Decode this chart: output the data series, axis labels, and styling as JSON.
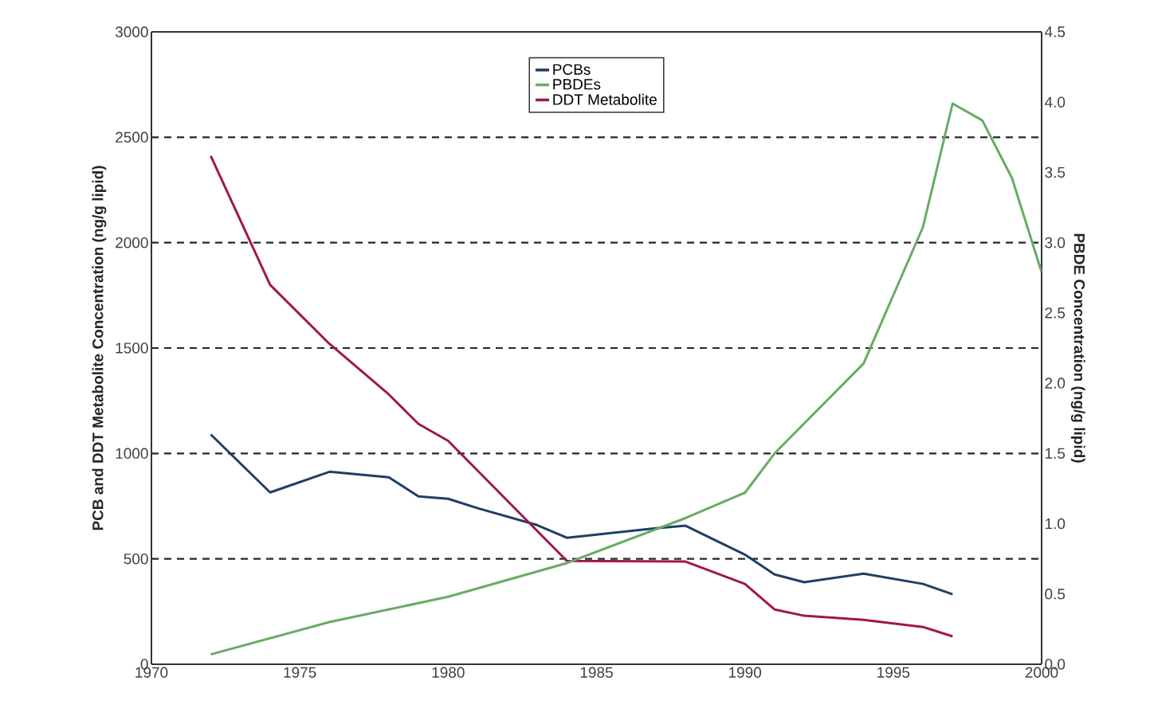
{
  "chart_data": {
    "type": "line",
    "xlabel": null,
    "ylabel": "PCB and DDT Metabolite Concentration (ng/g lipid)",
    "y2label": "PBDE Concentration (ng/g lipid)",
    "series": [
      {
        "name": "PCBs",
        "color": "#1f3f66",
        "x": [
          1972,
          1974,
          1976,
          1978,
          1979,
          1980,
          1981,
          1983,
          1984,
          1985,
          1986,
          1987,
          1988,
          1990,
          1991,
          1992,
          1994,
          1996,
          1997
        ],
        "values": [
          1090,
          815,
          913,
          887,
          796,
          785,
          740,
          660,
          600,
          615,
          630,
          645,
          657,
          520,
          426,
          389,
          430,
          381,
          332
        ]
      },
      {
        "name": "PBDEs",
        "color": "#6aaa64",
        "axis": "y2",
        "x": [
          1972,
          1976,
          1980,
          1984,
          1988,
          1990,
          1991,
          1994,
          1996,
          1997,
          1998,
          1999,
          2000
        ],
        "values": [
          0.07,
          0.3,
          0.48,
          0.72,
          1.04,
          1.22,
          1.5,
          2.14,
          3.11,
          3.99,
          3.87,
          3.46,
          2.79
        ]
      },
      {
        "name": "DDT Metabolite",
        "color": "#a0174a",
        "x": [
          1972,
          1974,
          1976,
          1978,
          1979,
          1980,
          1984,
          1988,
          1990,
          1991,
          1992,
          1994,
          1996,
          1997
        ],
        "values": [
          2411,
          1800,
          1520,
          1280,
          1140,
          1060,
          490,
          487,
          381,
          260,
          230,
          211,
          177,
          132
        ]
      }
    ],
    "xlim": [
      1970,
      2000
    ],
    "xticks": [
      1970,
      1975,
      1980,
      1985,
      1990,
      1995,
      2000
    ],
    "ylim": [
      0,
      3000
    ],
    "yticks": [
      0,
      500,
      1000,
      1500,
      2000,
      2500,
      3000
    ],
    "y2lim": [
      0,
      4.5
    ],
    "y2ticks": [
      {
        "value": 0,
        "label": "0.0"
      },
      {
        "value": 0.5,
        "label": "0.5"
      },
      {
        "value": 1,
        "label": "1.0"
      },
      {
        "value": 1.5,
        "label": "1.5"
      },
      {
        "value": 2,
        "label": "2.0"
      },
      {
        "value": 2.5,
        "label": "2.5"
      },
      {
        "value": 3,
        "label": "3.0"
      },
      {
        "value": 3.5,
        "label": "3.5"
      },
      {
        "value": 4,
        "label": "4.0"
      },
      {
        "value": 4.5,
        "label": "4.5"
      }
    ],
    "grid": "y",
    "line_style": "solid",
    "marker": "none",
    "legend": "top"
  }
}
